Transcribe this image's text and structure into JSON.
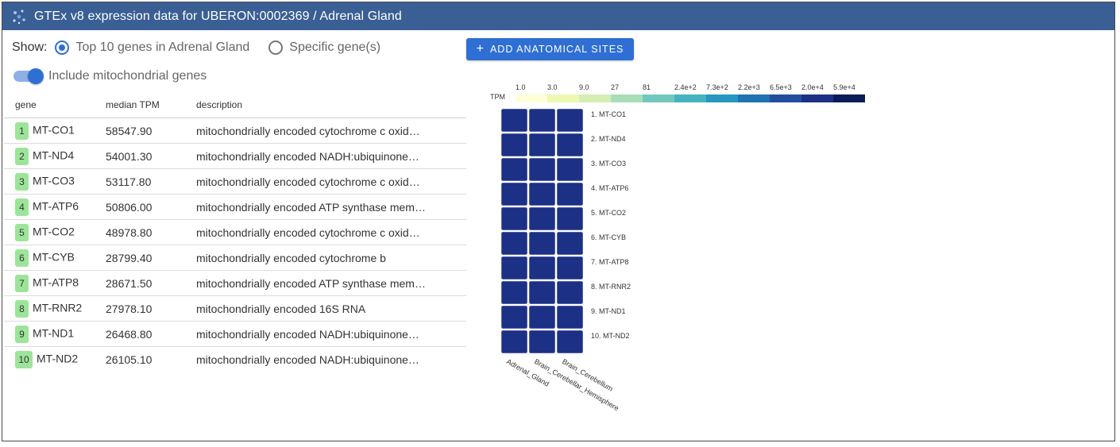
{
  "header": {
    "title": "GTEx v8 expression data for UBERON:0002369 / Adrenal Gland",
    "icon": "gtex-logo-icon",
    "color": "#3a5f94"
  },
  "controls": {
    "show_label": "Show:",
    "options": [
      {
        "label": "Top 10 genes in Adrenal Gland",
        "selected": true
      },
      {
        "label": "Specific gene(s)",
        "selected": false
      }
    ],
    "add_button": {
      "label": "ADD ANATOMICAL SITES",
      "color": "#2f6fd4"
    },
    "mito_toggle": {
      "label": "Include mitochondrial genes",
      "on": true
    }
  },
  "table": {
    "columns": [
      "gene",
      "median TPM",
      "description"
    ],
    "rows": [
      {
        "rank": "1",
        "gene": "MT-CO1",
        "tpm": "58547.90",
        "description": "mitochondrially encoded cytochrome c oxid…"
      },
      {
        "rank": "2",
        "gene": "MT-ND4",
        "tpm": "54001.30",
        "description": "mitochondrially encoded NADH:ubiquinone…"
      },
      {
        "rank": "3",
        "gene": "MT-CO3",
        "tpm": "53117.80",
        "description": "mitochondrially encoded cytochrome c oxid…"
      },
      {
        "rank": "4",
        "gene": "MT-ATP6",
        "tpm": "50806.00",
        "description": "mitochondrially encoded ATP synthase mem…"
      },
      {
        "rank": "5",
        "gene": "MT-CO2",
        "tpm": "48978.80",
        "description": "mitochondrially encoded cytochrome c oxid…"
      },
      {
        "rank": "6",
        "gene": "MT-CYB",
        "tpm": "28799.40",
        "description": "mitochondrially encoded cytochrome b"
      },
      {
        "rank": "7",
        "gene": "MT-ATP8",
        "tpm": "28671.50",
        "description": "mitochondrially encoded ATP synthase mem…"
      },
      {
        "rank": "8",
        "gene": "MT-RNR2",
        "tpm": "27978.10",
        "description": "mitochondrially encoded 16S RNA"
      },
      {
        "rank": "9",
        "gene": "MT-ND1",
        "tpm": "26468.80",
        "description": "mitochondrially encoded NADH:ubiquinone…"
      },
      {
        "rank": "10",
        "gene": "MT-ND2",
        "tpm": "26105.10",
        "description": "mitochondrially encoded NADH:ubiquinone…"
      }
    ]
  },
  "chart_data": {
    "type": "heatmap",
    "legend_title": "TPM",
    "legend_ticks": [
      "1.0",
      "3.0",
      "9.0",
      "27",
      "81",
      "2.4e+2",
      "7.3e+2",
      "2.2e+3",
      "6.5e+3",
      "2.0e+4",
      "5.9e+4"
    ],
    "legend_colors": [
      "#ffffd9",
      "#edf8b1",
      "#d5eeb3",
      "#a9ddb7",
      "#73c8bd",
      "#45b4c2",
      "#2897bf",
      "#2073b2",
      "#234ea0",
      "#1c3185",
      "#081d58"
    ],
    "columns": [
      "Adrenal_Gland",
      "Brain_Cerebellar_Hemisphere",
      "Brain_Cerebellum"
    ],
    "rows": [
      "1. MT-CO1",
      "2. MT-ND4",
      "3. MT-CO3",
      "4. MT-ATP6",
      "5. MT-CO2",
      "6. MT-CYB",
      "7. MT-ATP8",
      "8. MT-RNR2",
      "9. MT-ND1",
      "10. MT-ND2"
    ],
    "values": [
      [
        58547.9,
        30000,
        32000
      ],
      [
        54001.3,
        30000,
        30000
      ],
      [
        53117.8,
        40000,
        38000
      ],
      [
        50806.0,
        42000,
        35000
      ],
      [
        48978.8,
        42000,
        38000
      ],
      [
        28799.4,
        22000,
        26000
      ],
      [
        28671.5,
        24000,
        24000
      ],
      [
        27978.1,
        26000,
        25000
      ],
      [
        26468.8,
        25000,
        26000
      ],
      [
        26105.1,
        25000,
        24000
      ]
    ],
    "grid": false,
    "legend_placement": "top"
  }
}
